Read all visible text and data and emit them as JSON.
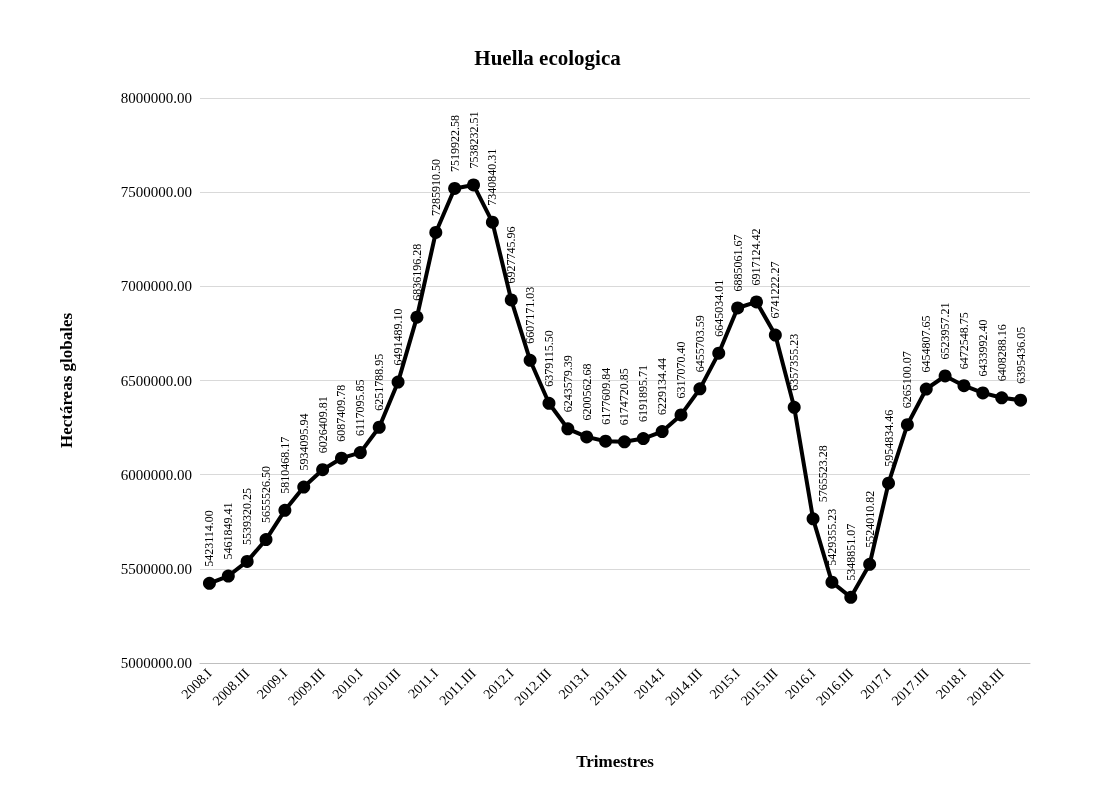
{
  "chart_data": {
    "type": "line",
    "title": "Huella ecologica",
    "xlabel": "Trimestres",
    "ylabel": "Hectáreas globales",
    "categories": [
      "2008.I",
      null,
      "2008.III",
      null,
      "2009.I",
      null,
      "2009.III",
      null,
      "2010.I",
      null,
      "2010.III",
      null,
      "2011.I",
      null,
      "2011.III",
      null,
      "2012.I",
      null,
      "2012.III",
      null,
      "2013.I",
      null,
      "2013.III",
      null,
      "2014.I",
      null,
      "2014.III",
      null,
      "2015.I",
      null,
      "2015.III",
      null,
      "2016.I",
      null,
      "2016.III",
      null,
      "2017.I",
      null,
      "2017.III",
      null,
      "2018.I",
      null,
      "2018.III",
      null
    ],
    "series": [
      {
        "color": "#000000",
        "values": [
          5423114.0,
          5461849.41,
          5539320.25,
          5655526.5,
          5810468.17,
          5934095.94,
          6026409.81,
          6087409.78,
          6117095.85,
          6251788.95,
          6491489.1,
          6836196.28,
          7285910.5,
          7519922.58,
          7538232.51,
          7340840.31,
          6927745.96,
          6607171.03,
          6379115.5,
          6243579.39,
          6200562.68,
          6177609.84,
          6174720.85,
          6191895.71,
          6229134.44,
          6317070.4,
          6455703.59,
          6645034.01,
          6885061.67,
          6917124.42,
          6741222.27,
          6357355.23,
          5765523.28,
          5429355.23,
          5348851.07,
          5524010.82,
          5954834.46,
          6265100.07,
          6454807.65,
          6523957.21,
          6472548.75,
          6433992.4,
          6408288.16,
          6395436.05
        ],
        "value_labels": [
          "5423114.00",
          "5461849.41",
          "5539320.25",
          "5655526.50",
          "5810468.17",
          "5934095.94",
          "6026409.81",
          "6087409.78",
          "6117095.85",
          "6251788.95",
          "6491489.10",
          "6836196.28",
          "7285910.50",
          "7519922.58",
          "7538232.51",
          "7340840.31",
          "6927745.96",
          "6607171.03",
          "6379115.50",
          "6243579.39",
          "6200562.68",
          "6177609.84",
          "6174720.85",
          "6191895.71",
          "6229134.44",
          "6317070.40",
          "6455703.59",
          "6645034.01",
          "6885061.67",
          "6917124.42",
          "6741222.27",
          "6357355.23",
          "5765523.28",
          "5429355.23",
          "5348851.07",
          "5524010.82",
          "5954834.46",
          "6265100.07",
          "6454807.65",
          "6523957.21",
          "6472548.75",
          "6433992.40",
          "6408288.16",
          "6395436.05"
        ]
      }
    ],
    "ylim": [
      5000000,
      8000000
    ],
    "yticks": [
      {
        "value": 5000000,
        "label": "5000000.00"
      },
      {
        "value": 5500000,
        "label": "5500000.00"
      },
      {
        "value": 6000000,
        "label": "6000000.00"
      },
      {
        "value": 6500000,
        "label": "6500000.00"
      },
      {
        "value": 7000000,
        "label": "7000000.00"
      },
      {
        "value": 7500000,
        "label": "7500000.00"
      },
      {
        "value": 8000000,
        "label": "8000000.00"
      }
    ],
    "grid": "y",
    "marker": "circle",
    "line_style": "solid"
  }
}
